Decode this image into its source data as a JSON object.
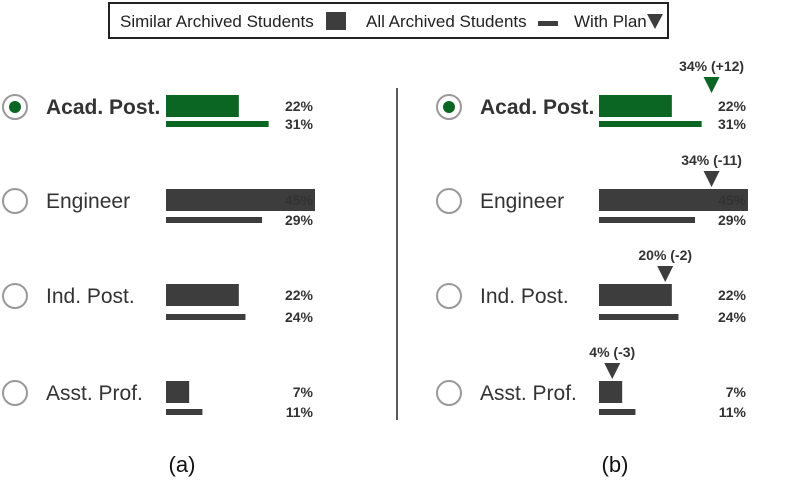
{
  "legend": {
    "similar_label": "Similar Archived Students",
    "all_label": "All Archived Students",
    "plan_label": "With Plan"
  },
  "colors": {
    "selected": "#0b6623",
    "default": "#3d3d3d",
    "text": "#333333",
    "radio_border": "#999999"
  },
  "chart_data": [
    {
      "type": "bar",
      "caption": "(a)",
      "categories": [
        "Acad. Post.",
        "Engineer",
        "Ind. Post.",
        "Asst. Prof."
      ],
      "selected": "Acad. Post.",
      "series": [
        {
          "name": "Similar Archived Students",
          "values": [
            22,
            45,
            22,
            7
          ],
          "labels": [
            "22%",
            "45%",
            "22%",
            "7%"
          ]
        },
        {
          "name": "All Archived Students",
          "values": [
            31,
            29,
            24,
            11
          ],
          "labels": [
            "31%",
            "29%",
            "24%",
            "11%"
          ]
        }
      ],
      "xlim": [
        0,
        45
      ]
    },
    {
      "type": "bar",
      "caption": "(b)",
      "categories": [
        "Acad. Post.",
        "Engineer",
        "Ind. Post.",
        "Asst. Prof."
      ],
      "selected": "Acad. Post.",
      "series": [
        {
          "name": "Similar Archived Students",
          "values": [
            22,
            45,
            22,
            7
          ],
          "labels": [
            "22%",
            "45%",
            "22%",
            "7%"
          ]
        },
        {
          "name": "All Archived Students",
          "values": [
            31,
            29,
            24,
            11
          ],
          "labels": [
            "31%",
            "29%",
            "24%",
            "11%"
          ]
        },
        {
          "name": "With Plan",
          "values": [
            34,
            34,
            20,
            4
          ],
          "labels": [
            "34% (+12)",
            "34% (-11)",
            "20% (-2)",
            "4% (-3)"
          ]
        }
      ],
      "xlim": [
        0,
        45
      ]
    }
  ]
}
